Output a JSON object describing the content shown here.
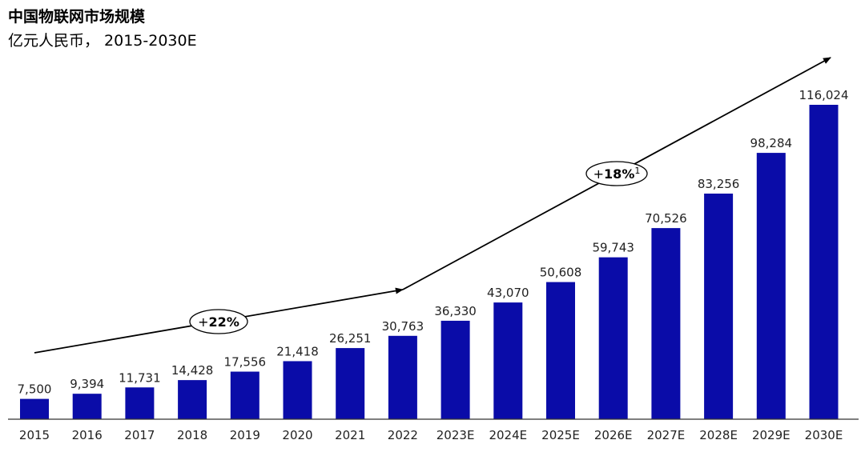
{
  "header": {
    "title": "中国物联网市场规模",
    "subtitle": "亿元人民币， 2015-2030E"
  },
  "chart_data": {
    "type": "bar",
    "categories": [
      "2015",
      "2016",
      "2017",
      "2018",
      "2019",
      "2020",
      "2021",
      "2022",
      "2023E",
      "2024E",
      "2025E",
      "2026E",
      "2027E",
      "2028E",
      "2029E",
      "2030E"
    ],
    "values": [
      7500,
      9394,
      11731,
      14428,
      17556,
      21418,
      26251,
      30763,
      36330,
      43070,
      50608,
      59743,
      70526,
      83256,
      98284,
      116024
    ],
    "labels": [
      "7,500",
      "9,394",
      "11,731",
      "14,428",
      "17,556",
      "21,418",
      "26,251",
      "30,763",
      "36,330",
      "43,070",
      "50,608",
      "59,743",
      "70,526",
      "83,256",
      "98,284",
      "116,024"
    ],
    "bar_color": "#0a0ca8",
    "title": "中国物联网市场规模",
    "subtitle": "亿元人民币， 2015-2030E",
    "ylim": [
      0,
      116024
    ],
    "grid": false,
    "annotations": [
      {
        "prefix": "+",
        "value": "22%",
        "sup": "",
        "range": [
          "2015",
          "2022"
        ]
      },
      {
        "prefix": "+",
        "value": "18%",
        "sup": "1",
        "range": [
          "2022",
          "2030E"
        ]
      }
    ]
  }
}
